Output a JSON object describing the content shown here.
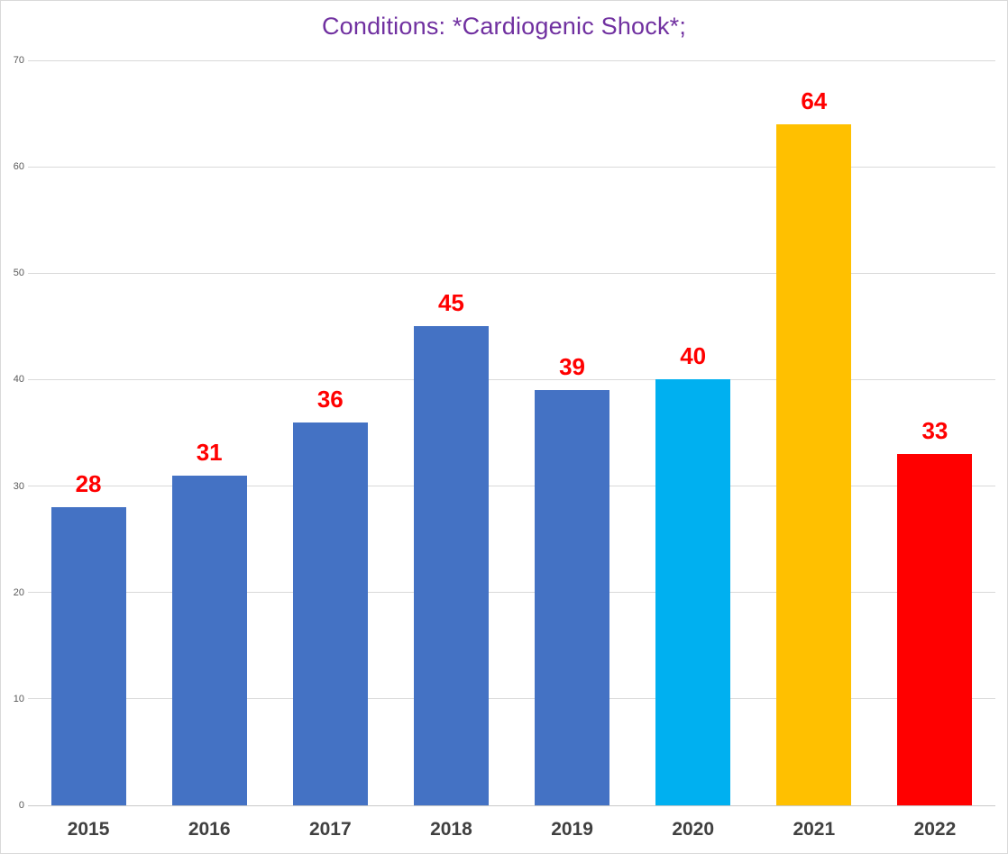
{
  "chart_data": {
    "type": "bar",
    "title": "Conditions: *Cardiogenic Shock*;",
    "title_color": "#7030A0",
    "categories": [
      "2015",
      "2016",
      "2017",
      "2018",
      "2019",
      "2020",
      "2021",
      "2022"
    ],
    "values": [
      28,
      31,
      36,
      45,
      39,
      40,
      64,
      33
    ],
    "bar_colors": [
      "#4472C4",
      "#4472C4",
      "#4472C4",
      "#4472C4",
      "#4472C4",
      "#00B0F0",
      "#FFC000",
      "#FF0000"
    ],
    "data_labels": [
      "28",
      "31",
      "36",
      "45",
      "39",
      "40",
      "64",
      "33"
    ],
    "data_label_color": "#FF0000",
    "xlabel": "",
    "ylabel": "",
    "ylim": [
      0,
      70
    ],
    "yticks": [
      0,
      10,
      20,
      30,
      40,
      50,
      60,
      70
    ],
    "grid": true,
    "gridline_color": "#D9D9D9",
    "baseline_color": "#C9C9C9",
    "y_tick_label_color": "#595959",
    "x_tick_label_color": "#404040",
    "legend": "none"
  }
}
